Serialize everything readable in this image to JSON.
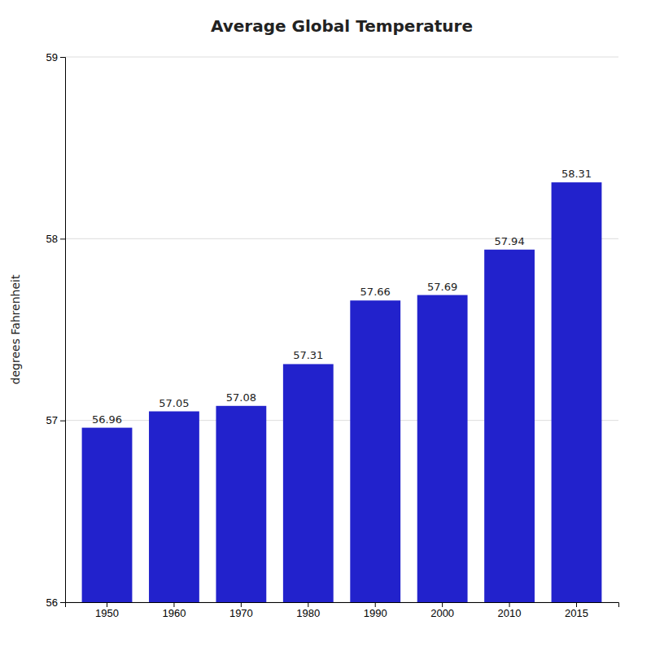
{
  "chart_data": {
    "type": "bar",
    "title": "Average Global Temperature",
    "ylabel": "degrees Fahrenheit",
    "categories": [
      "1950",
      "1960",
      "1970",
      "1980",
      "1990",
      "2000",
      "2010",
      "2015"
    ],
    "values": [
      56.96,
      57.05,
      57.08,
      57.31,
      57.66,
      57.69,
      57.94,
      58.31
    ],
    "color": "#2222CC",
    "ylim": [
      56,
      59
    ],
    "yticks": [
      56,
      57,
      58,
      59
    ],
    "grid": true,
    "data_labels": true
  }
}
